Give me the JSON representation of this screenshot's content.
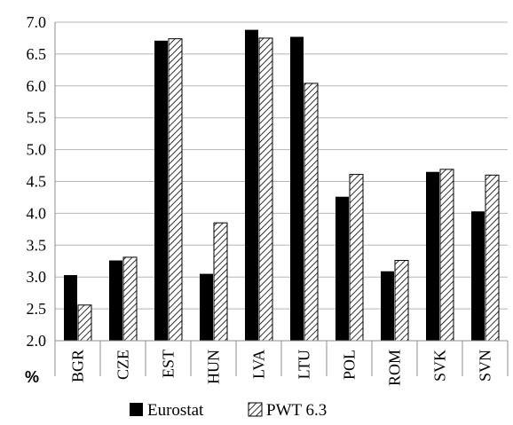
{
  "chart_data": {
    "type": "bar",
    "categories": [
      "BGR",
      "CZE",
      "EST",
      "HUN",
      "LVA",
      "LTU",
      "POL",
      "ROM",
      "SVK",
      "SVN"
    ],
    "series": [
      {
        "name": "Eurostat",
        "values": [
          3.03,
          3.26,
          6.71,
          3.05,
          6.88,
          6.77,
          4.26,
          3.09,
          4.65,
          4.03
        ],
        "color": "#000000",
        "fill": "solid"
      },
      {
        "name": "PWT 6.3",
        "values": [
          2.56,
          3.31,
          6.74,
          3.85,
          6.75,
          6.04,
          4.61,
          3.26,
          4.69,
          4.6
        ],
        "color": "#000000",
        "fill": "diagonal-hatch"
      }
    ],
    "ylim": [
      2.0,
      7.0
    ],
    "yticks": [
      "2.0",
      "2.5",
      "3.0",
      "3.5",
      "4.0",
      "4.5",
      "5.0",
      "5.5",
      "6.0",
      "6.5",
      "7.0"
    ],
    "ylabel": "%",
    "grid": true,
    "legend_position": "bottom"
  }
}
